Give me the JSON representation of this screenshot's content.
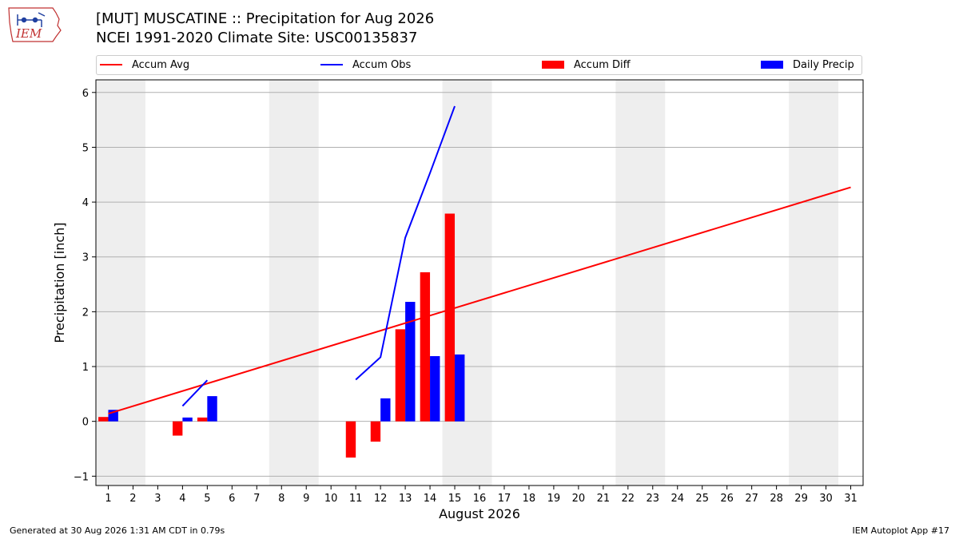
{
  "title_line1": "[MUT] MUSCATINE :: Precipitation for Aug 2026",
  "title_line2": "NCEI 1991-2020 Climate Site: USC00135837",
  "logo_text": "IEM",
  "footer_left": "Generated at 30 Aug 2026 1:31 AM CDT in 0.79s",
  "footer_right": "IEM Autoplot App #17",
  "legend": {
    "accum_avg": "Accum Avg",
    "accum_obs": "Accum Obs",
    "accum_diff": "Accum Diff",
    "daily_precip": "Daily Precip"
  },
  "colors": {
    "accum_avg": "#ff0000",
    "accum_obs": "#0000ff",
    "accum_diff": "#ff0000",
    "daily_precip": "#0000ff",
    "weekend_shade": "#eeeeee",
    "grid": "#b0b0b0"
  },
  "chart_data": {
    "type": "bar",
    "xlabel": "August 2026",
    "ylabel": "Precipitation [inch]",
    "ylim": [
      -1.17,
      6.23
    ],
    "xlim": [
      0.5,
      31.5
    ],
    "yticks": [
      -1,
      0,
      1,
      2,
      3,
      4,
      5,
      6
    ],
    "ytick_labels": [
      "−1",
      "0",
      "1",
      "2",
      "3",
      "4",
      "5",
      "6"
    ],
    "xticks": [
      1,
      2,
      3,
      4,
      5,
      6,
      7,
      8,
      9,
      10,
      11,
      12,
      13,
      14,
      15,
      16,
      17,
      18,
      19,
      20,
      21,
      22,
      23,
      24,
      25,
      26,
      27,
      28,
      29,
      30,
      31
    ],
    "grid": "y",
    "legend_position": "top",
    "weekend_shading": [
      [
        0.5,
        2.5
      ],
      [
        7.5,
        9.5
      ],
      [
        14.5,
        16.5
      ],
      [
        21.5,
        23.5
      ],
      [
        28.5,
        30.5
      ]
    ],
    "accum_avg": {
      "name": "Accum Avg",
      "x": [
        1,
        31
      ],
      "y": [
        0.14,
        4.27
      ]
    },
    "accum_obs": {
      "name": "Accum Obs",
      "segments": [
        {
          "x": [
            4,
            5
          ],
          "y": [
            0.28,
            0.75
          ]
        },
        {
          "x": [
            11,
            12,
            13,
            14,
            15
          ],
          "y": [
            0.76,
            1.17,
            3.35,
            4.53,
            5.75
          ]
        }
      ]
    },
    "accum_diff": {
      "name": "Accum Diff",
      "x": [
        1,
        4,
        5,
        11,
        12,
        13,
        14,
        15
      ],
      "values": [
        0.08,
        -0.26,
        0.07,
        -0.66,
        -0.37,
        1.68,
        2.72,
        3.79
      ]
    },
    "daily_precip": {
      "name": "Daily Precip",
      "x": [
        1,
        4,
        5,
        12,
        13,
        14,
        15
      ],
      "values": [
        0.21,
        0.07,
        0.46,
        0.42,
        2.18,
        1.19,
        1.22
      ]
    }
  }
}
